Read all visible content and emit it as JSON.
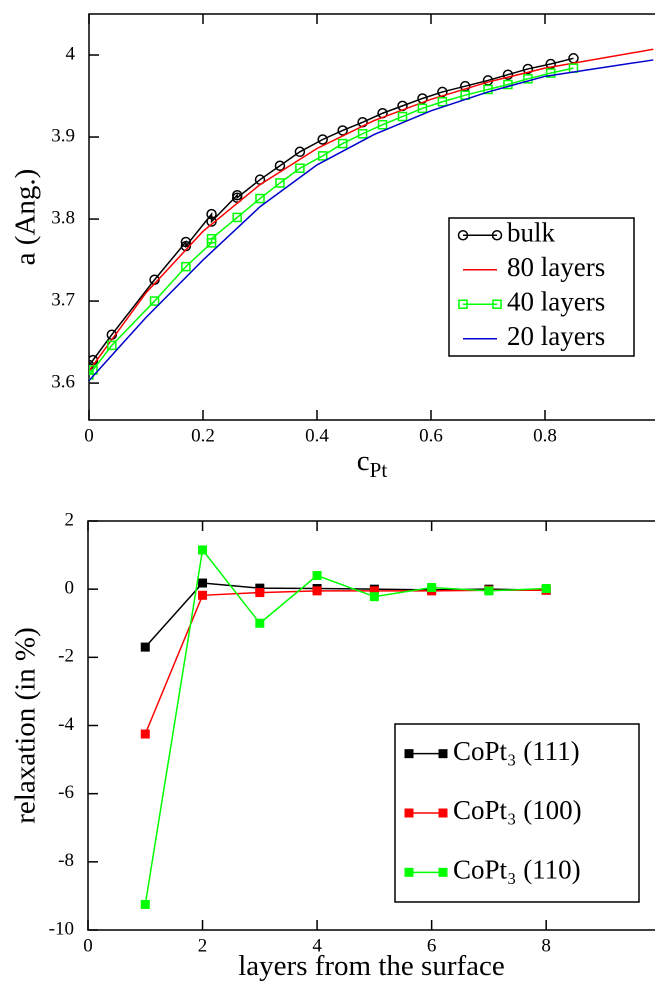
{
  "chart_data": [
    {
      "type": "line",
      "xlabel": "c",
      "xlabel_sub": "Pt",
      "ylabel": "a (Ang.)",
      "xlim": [
        0,
        0.993
      ],
      "ylim": [
        3.555,
        4.05
      ],
      "xticks": [
        0,
        0.2,
        0.4,
        0.6,
        0.8
      ],
      "yticks": [
        3.6,
        3.7,
        3.8,
        3.9,
        4
      ],
      "legend": "lower right",
      "series": [
        {
          "name": "bulk",
          "color": "#000000",
          "marker": "open-circle",
          "x": [
            0,
            0.007,
            0.04,
            0.115,
            0.17,
            0.17,
            0.215,
            0.215,
            0.26,
            0.26,
            0.3,
            0.335,
            0.37,
            0.41,
            0.445,
            0.48,
            0.515,
            0.55,
            0.585,
            0.62,
            0.66,
            0.7,
            0.735,
            0.77,
            0.81,
            0.85
          ],
          "values": [
            3.622,
            3.628,
            3.659,
            3.726,
            3.772,
            3.767,
            3.806,
            3.797,
            3.829,
            3.826,
            3.848,
            3.865,
            3.882,
            3.897,
            3.908,
            3.918,
            3.929,
            3.938,
            3.947,
            3.955,
            3.962,
            3.969,
            3.976,
            3.983,
            3.989,
            3.996
          ]
        },
        {
          "name": "80 layers",
          "color": "#ff0000",
          "marker": "none",
          "x": [
            0,
            0.1,
            0.2,
            0.3,
            0.4,
            0.5,
            0.6,
            0.7,
            0.8,
            0.99
          ],
          "values": [
            3.615,
            3.71,
            3.785,
            3.842,
            3.886,
            3.92,
            3.946,
            3.967,
            3.984,
            4.007
          ]
        },
        {
          "name": "40 layers",
          "color": "#00ff00",
          "marker": "open-square",
          "x": [
            0,
            0.007,
            0.04,
            0.115,
            0.17,
            0.215,
            0.215,
            0.26,
            0.3,
            0.335,
            0.37,
            0.41,
            0.445,
            0.48,
            0.515,
            0.55,
            0.585,
            0.62,
            0.66,
            0.7,
            0.735,
            0.77,
            0.81,
            0.85
          ],
          "values": [
            3.61,
            3.616,
            3.646,
            3.7,
            3.742,
            3.771,
            3.776,
            3.802,
            3.825,
            3.844,
            3.862,
            3.877,
            3.892,
            3.904,
            3.915,
            3.925,
            3.935,
            3.943,
            3.951,
            3.958,
            3.964,
            3.971,
            3.978,
            3.984
          ]
        },
        {
          "name": "20 layers",
          "color": "#0000cd",
          "marker": "none",
          "x": [
            0,
            0.1,
            0.2,
            0.3,
            0.4,
            0.5,
            0.6,
            0.7,
            0.8,
            0.99
          ],
          "values": [
            3.603,
            3.68,
            3.75,
            3.815,
            3.866,
            3.903,
            3.932,
            3.955,
            3.974,
            3.994
          ]
        }
      ]
    },
    {
      "type": "line",
      "xlabel": "layers from the surface",
      "ylabel": "relaxation (in %)",
      "xlim": [
        0,
        9.9
      ],
      "ylim": [
        -10,
        2
      ],
      "xticks": [
        0,
        2,
        4,
        6,
        8
      ],
      "yticks": [
        -10,
        -8,
        -6,
        -4,
        -2,
        0,
        2
      ],
      "legend": "lower right",
      "series": [
        {
          "name": "CoPt₃ (111)",
          "color": "#000000",
          "marker": "filled-square",
          "x": [
            1,
            2,
            3,
            4,
            5,
            6,
            7,
            8
          ],
          "values": [
            -1.7,
            0.18,
            0.03,
            0.02,
            0,
            -0.02,
            0,
            -0.03
          ]
        },
        {
          "name": "CoPt₃ (100)",
          "color": "#ff0000",
          "marker": "filled-square",
          "x": [
            1,
            2,
            3,
            4,
            5,
            6,
            7,
            8
          ],
          "values": [
            -4.25,
            -0.18,
            -0.1,
            -0.05,
            -0.05,
            -0.05,
            -0.03,
            -0.03
          ]
        },
        {
          "name": "CoPt₃ (110)",
          "color": "#00ff00",
          "marker": "filled-square",
          "x": [
            1,
            2,
            3,
            4,
            5,
            6,
            7,
            8
          ],
          "values": [
            -9.25,
            1.15,
            -1.0,
            0.4,
            -0.22,
            0.05,
            -0.05,
            0.02
          ]
        }
      ]
    }
  ]
}
